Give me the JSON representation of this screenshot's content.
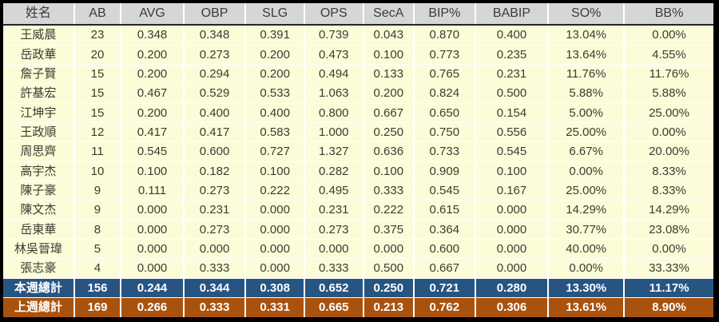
{
  "chart_data": {
    "type": "table",
    "title": "",
    "columns": [
      "姓名",
      "AB",
      "AVG",
      "OBP",
      "SLG",
      "OPS",
      "SecA",
      "BIP%",
      "BABIP",
      "SO%",
      "BB%"
    ],
    "rows": [
      [
        "王威晨",
        "23",
        "0.348",
        "0.348",
        "0.391",
        "0.739",
        "0.043",
        "0.870",
        "0.400",
        "13.04%",
        "0.00%"
      ],
      [
        "岳政華",
        "20",
        "0.200",
        "0.273",
        "0.200",
        "0.473",
        "0.100",
        "0.773",
        "0.235",
        "13.64%",
        "4.55%"
      ],
      [
        "詹子賢",
        "15",
        "0.200",
        "0.294",
        "0.200",
        "0.494",
        "0.133",
        "0.765",
        "0.231",
        "11.76%",
        "11.76%"
      ],
      [
        "許基宏",
        "15",
        "0.467",
        "0.529",
        "0.533",
        "1.063",
        "0.200",
        "0.824",
        "0.500",
        "5.88%",
        "5.88%"
      ],
      [
        "江坤宇",
        "15",
        "0.200",
        "0.400",
        "0.400",
        "0.800",
        "0.667",
        "0.650",
        "0.154",
        "5.00%",
        "25.00%"
      ],
      [
        "王政順",
        "12",
        "0.417",
        "0.417",
        "0.583",
        "1.000",
        "0.250",
        "0.750",
        "0.556",
        "25.00%",
        "0.00%"
      ],
      [
        "周思齊",
        "11",
        "0.545",
        "0.600",
        "0.727",
        "1.327",
        "0.636",
        "0.733",
        "0.545",
        "6.67%",
        "20.00%"
      ],
      [
        "高宇杰",
        "10",
        "0.100",
        "0.182",
        "0.100",
        "0.282",
        "0.100",
        "0.909",
        "0.100",
        "0.00%",
        "8.33%"
      ],
      [
        "陳子豪",
        "9",
        "0.111",
        "0.273",
        "0.222",
        "0.495",
        "0.333",
        "0.545",
        "0.167",
        "25.00%",
        "8.33%"
      ],
      [
        "陳文杰",
        "9",
        "0.000",
        "0.231",
        "0.000",
        "0.231",
        "0.222",
        "0.615",
        "0.000",
        "14.29%",
        "14.29%"
      ],
      [
        "岳東華",
        "8",
        "0.000",
        "0.273",
        "0.000",
        "0.273",
        "0.375",
        "0.364",
        "0.000",
        "30.77%",
        "23.08%"
      ],
      [
        "林吳晉瑋",
        "5",
        "0.000",
        "0.000",
        "0.000",
        "0.000",
        "0.000",
        "0.600",
        "0.000",
        "40.00%",
        "0.00%"
      ],
      [
        "張志豪",
        "4",
        "0.000",
        "0.333",
        "0.000",
        "0.333",
        "0.500",
        "0.667",
        "0.000",
        "0.00%",
        "33.33%"
      ]
    ],
    "totals": [
      {
        "label": "本週總計",
        "values": [
          "156",
          "0.244",
          "0.344",
          "0.308",
          "0.652",
          "0.250",
          "0.721",
          "0.280",
          "13.30%",
          "11.17%"
        ]
      },
      {
        "label": "上週總計",
        "values": [
          "169",
          "0.266",
          "0.333",
          "0.331",
          "0.665",
          "0.213",
          "0.762",
          "0.306",
          "13.61%",
          "8.90%"
        ]
      }
    ]
  },
  "colors": {
    "page_background": "#000000",
    "header_background": "#D6D6D6",
    "header_text": "#3A3A3A",
    "row_background": "#FCFCD9",
    "row_text": "#3C3C32",
    "grid_line": "#FFFFFF",
    "header_divider": "#262626",
    "this_week_background": "#275582",
    "last_week_background": "#A9520E",
    "total_text": "#FFFFFF"
  }
}
